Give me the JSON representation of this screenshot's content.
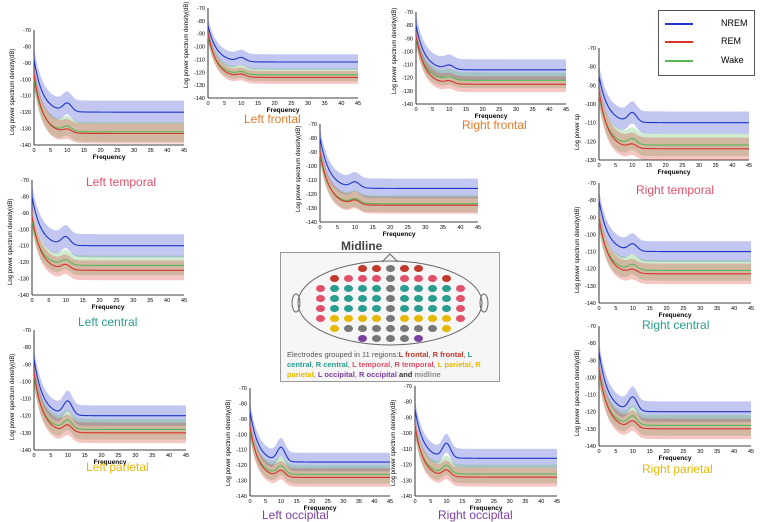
{
  "legend": {
    "title": "",
    "items": [
      {
        "name": "NREM",
        "color": "#1f35c8"
      },
      {
        "name": "REM",
        "color": "#d8322a"
      },
      {
        "name": "Wake",
        "color": "#57b957"
      }
    ]
  },
  "axis": {
    "ylabel": "Log power spectrum density(dB)",
    "ylabel_short": "Log power sp",
    "xlabel": "Frequency",
    "xticks": [
      "0",
      "5",
      "10",
      "15",
      "20",
      "25",
      "30",
      "35",
      "40",
      "45"
    ],
    "yticks": [
      "-70",
      "-80",
      "-90",
      "-100",
      "-110",
      "-120",
      "-130",
      "-140"
    ]
  },
  "midline_title": "Midline",
  "head_caption": {
    "prefix": "Electrodes grouped in 11 regions:",
    "regions": [
      {
        "text": "L frontal",
        "color": "#c0392b"
      },
      {
        "text": "R frontal",
        "color": "#c0392b"
      },
      {
        "text": "L central",
        "color": "#2a9d8f"
      },
      {
        "text": "R central",
        "color": "#2a9d8f"
      },
      {
        "text": "L temporal",
        "color": "#e0506a"
      },
      {
        "text": "R temporal",
        "color": "#e0506a"
      },
      {
        "text": "L parietal",
        "color": "#e6b800"
      },
      {
        "text": "R parietal",
        "color": "#e6b800"
      },
      {
        "text": "L occipital",
        "color": "#7b3fa0"
      },
      {
        "text": "R occipital",
        "color": "#7b3fa0"
      }
    ],
    "suffix": "and",
    "last": "midline"
  },
  "chart_data": [
    {
      "type": "line",
      "title": "Left temporal",
      "title_color": "#e0506a",
      "xlim": [
        0,
        45
      ],
      "ylim": [
        -140,
        -70
      ],
      "series": [
        {
          "name": "NREM",
          "start": -88,
          "plateau": -120,
          "bump": 5,
          "band": 7
        },
        {
          "name": "REM",
          "start": -97,
          "plateau": -133,
          "bump": 2,
          "band": 6
        },
        {
          "name": "Wake",
          "start": -100,
          "plateau": -132,
          "bump": 3,
          "band": 6
        }
      ]
    },
    {
      "type": "line",
      "title": "Left frontal",
      "title_color": "#e07a2a",
      "xlim": [
        0,
        45
      ],
      "ylim": [
        -140,
        -70
      ],
      "series": [
        {
          "name": "NREM",
          "start": -84,
          "plateau": -112,
          "bump": 3,
          "band": 6
        },
        {
          "name": "REM",
          "start": -90,
          "plateau": -124,
          "bump": 2,
          "band": 5
        },
        {
          "name": "Wake",
          "start": -92,
          "plateau": -122,
          "bump": 2,
          "band": 5
        }
      ]
    },
    {
      "type": "line",
      "title": "Right frontal",
      "title_color": "#e07a2a",
      "xlim": [
        0,
        45
      ],
      "ylim": [
        -140,
        -70
      ],
      "series": [
        {
          "name": "NREM",
          "start": -80,
          "plateau": -114,
          "bump": 3,
          "band": 8
        },
        {
          "name": "REM",
          "start": -88,
          "plateau": -125,
          "bump": 2,
          "band": 6
        },
        {
          "name": "Wake",
          "start": -90,
          "plateau": -122,
          "bump": 2,
          "band": 6
        }
      ]
    },
    {
      "type": "line",
      "title": "Right temporal",
      "title_color": "#e0506a",
      "xlim": [
        0,
        45
      ],
      "ylim": [
        -130,
        -70
      ],
      "series": [
        {
          "name": "NREM",
          "start": -85,
          "plateau": -110,
          "bump": 5,
          "band": 6
        },
        {
          "name": "REM",
          "start": -93,
          "plateau": -124,
          "bump": 2,
          "band": 6
        },
        {
          "name": "Wake",
          "start": -95,
          "plateau": -122,
          "bump": 3,
          "band": 6
        }
      ]
    },
    {
      "type": "line",
      "title": "Midline",
      "title_color": "#444444",
      "xlim": [
        0,
        45
      ],
      "ylim": [
        -140,
        -70
      ],
      "series": [
        {
          "name": "NREM",
          "start": -80,
          "plateau": -116,
          "bump": 4,
          "band": 7
        },
        {
          "name": "REM",
          "start": -90,
          "plateau": -128,
          "bump": 3,
          "band": 6
        },
        {
          "name": "Wake",
          "start": -92,
          "plateau": -127,
          "bump": 3,
          "band": 6
        }
      ]
    },
    {
      "type": "line",
      "title": "Left central",
      "title_color": "#2a9d8f",
      "xlim": [
        0,
        45
      ],
      "ylim": [
        -140,
        -70
      ],
      "series": [
        {
          "name": "NREM",
          "start": -80,
          "plateau": -110,
          "bump": 5,
          "band": 7
        },
        {
          "name": "REM",
          "start": -92,
          "plateau": -125,
          "bump": 3,
          "band": 6
        },
        {
          "name": "Wake",
          "start": -95,
          "plateau": -122,
          "bump": 3,
          "band": 6
        }
      ]
    },
    {
      "type": "line",
      "title": "Right central",
      "title_color": "#2a9d8f",
      "xlim": [
        0,
        45
      ],
      "ylim": [
        -140,
        -70
      ],
      "series": [
        {
          "name": "NREM",
          "start": -80,
          "plateau": -110,
          "bump": 4,
          "band": 6
        },
        {
          "name": "REM",
          "start": -90,
          "plateau": -123,
          "bump": 2,
          "band": 6
        },
        {
          "name": "Wake",
          "start": -92,
          "plateau": -121,
          "bump": 3,
          "band": 6
        }
      ]
    },
    {
      "type": "line",
      "title": "Left parietal",
      "title_color": "#e6b800",
      "xlim": [
        0,
        45
      ],
      "ylim": [
        -140,
        -70
      ],
      "series": [
        {
          "name": "NREM",
          "start": -87,
          "plateau": -120,
          "bump": 8,
          "band": 6
        },
        {
          "name": "REM",
          "start": -95,
          "plateau": -130,
          "bump": 4,
          "band": 6
        },
        {
          "name": "Wake",
          "start": -97,
          "plateau": -128,
          "bump": 5,
          "band": 6
        }
      ]
    },
    {
      "type": "line",
      "title": "Left occipital",
      "title_color": "#7b3fa0",
      "xlim": [
        0,
        45
      ],
      "ylim": [
        -140,
        -70
      ],
      "series": [
        {
          "name": "NREM",
          "start": -85,
          "plateau": -118,
          "bump": 9,
          "band": 6
        },
        {
          "name": "REM",
          "start": -95,
          "plateau": -128,
          "bump": 4,
          "band": 6
        },
        {
          "name": "Wake",
          "start": -97,
          "plateau": -126,
          "bump": 5,
          "band": 6
        }
      ]
    },
    {
      "type": "line",
      "title": "Right occipital",
      "title_color": "#7b3fa0",
      "xlim": [
        0,
        45
      ],
      "ylim": [
        -140,
        -70
      ],
      "series": [
        {
          "name": "NREM",
          "start": -85,
          "plateau": -116,
          "bump": 9,
          "band": 6
        },
        {
          "name": "REM",
          "start": -95,
          "plateau": -128,
          "bump": 4,
          "band": 6
        },
        {
          "name": "Wake",
          "start": -97,
          "plateau": -126,
          "bump": 5,
          "band": 6
        }
      ]
    },
    {
      "type": "line",
      "title": "Right parietal",
      "title_color": "#e6b800",
      "xlim": [
        0,
        45
      ],
      "ylim": [
        -140,
        -70
      ],
      "series": [
        {
          "name": "NREM",
          "start": -85,
          "plateau": -120,
          "bump": 8,
          "band": 6
        },
        {
          "name": "REM",
          "start": -95,
          "plateau": -130,
          "bump": 4,
          "band": 6
        },
        {
          "name": "Wake",
          "start": -97,
          "plateau": -128,
          "bump": 5,
          "band": 6
        }
      ]
    }
  ]
}
